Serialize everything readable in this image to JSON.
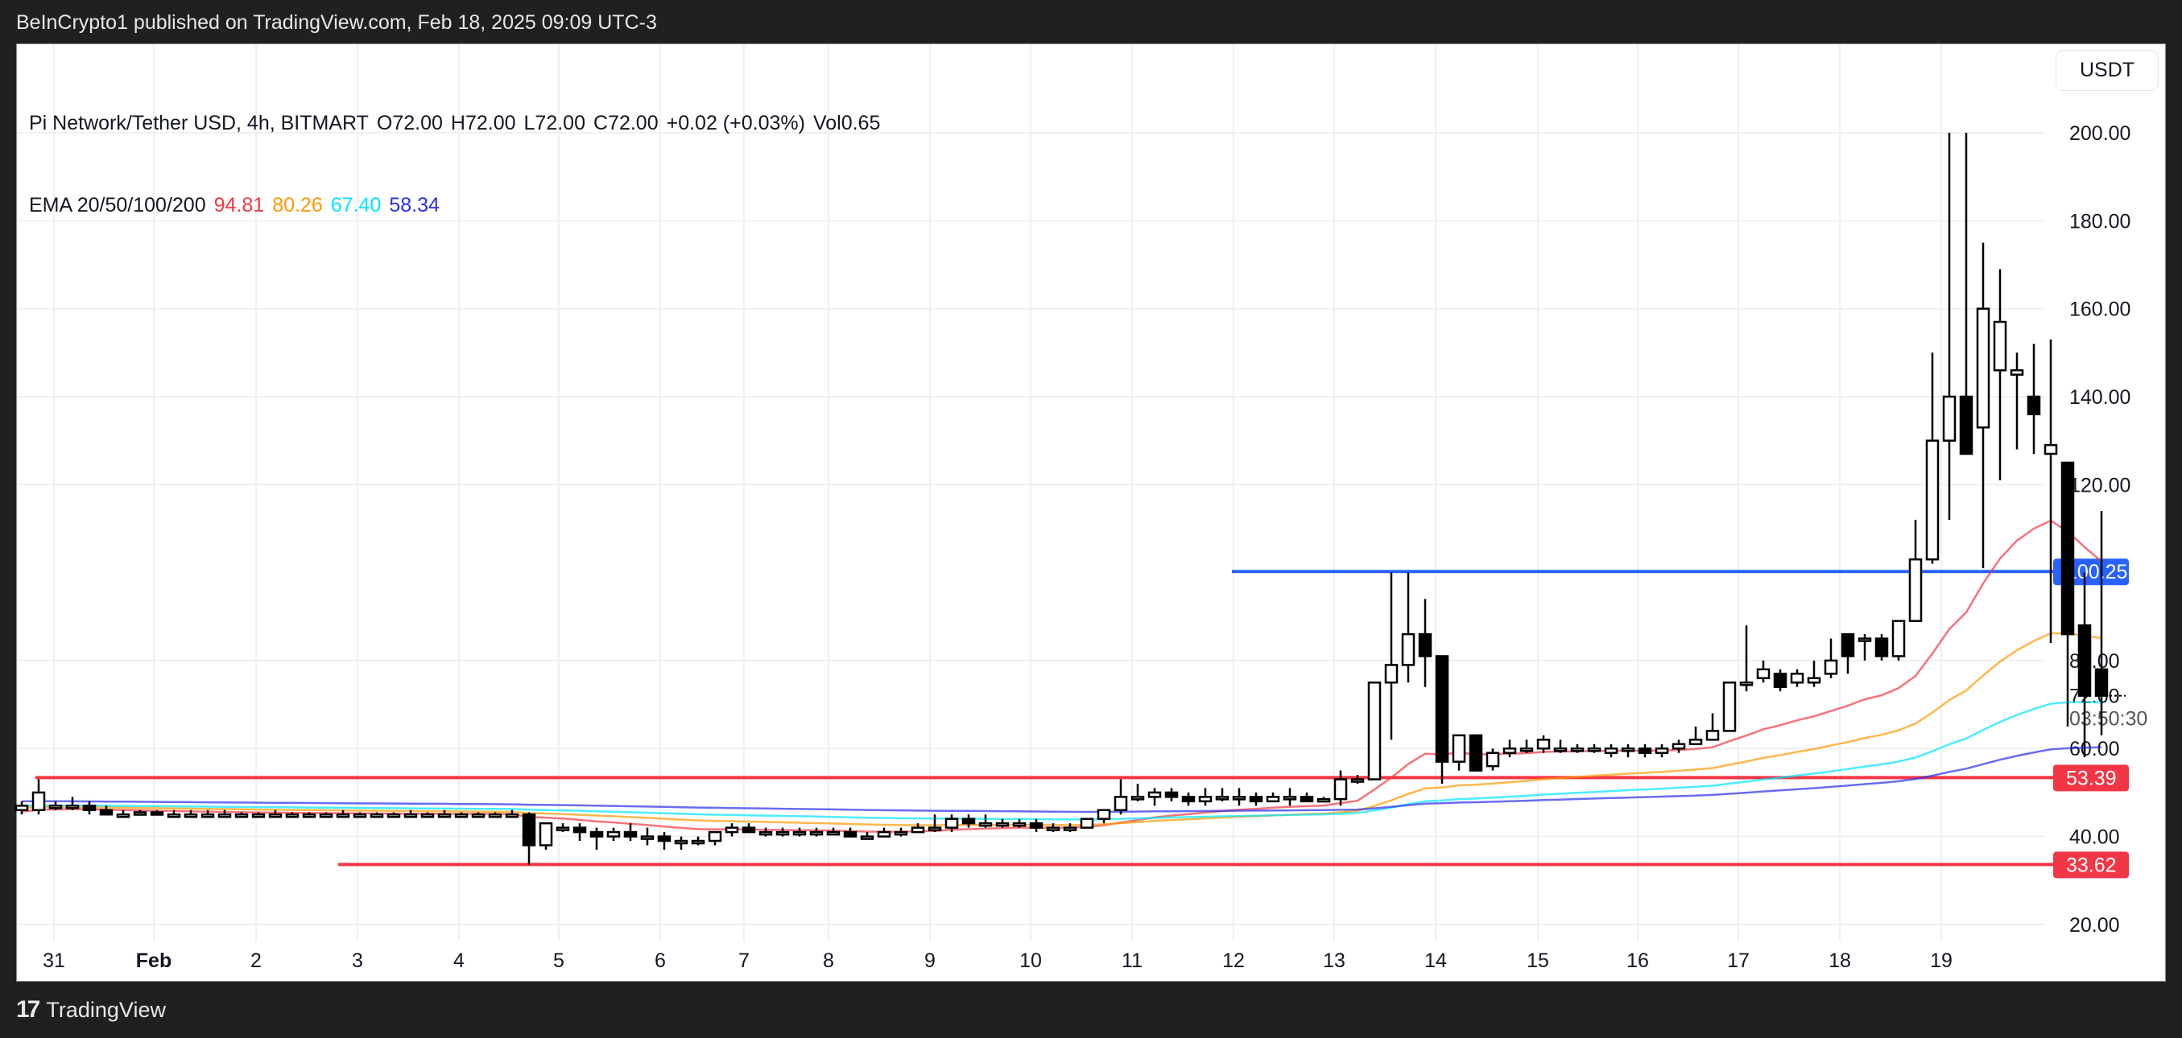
{
  "header": {
    "published": "BeInCrypto1 published on TradingView.com, Feb 18, 2025 09:09 UTC-3"
  },
  "legend": {
    "symbol": "Pi Network/Tether USD, 4h, BITMART",
    "open": "O72.00",
    "high": "H72.00",
    "low": "L72.00",
    "close": "C72.00",
    "change": "+0.02 (+0.03%)",
    "volume": "Vol0.65",
    "ema_label": "EMA 20/50/100/200",
    "ema_values": [
      {
        "value": "94.81",
        "color": "#f23645"
      },
      {
        "value": "80.26",
        "color": "#ff9800"
      },
      {
        "value": "67.40",
        "color": "#00e5ff"
      },
      {
        "value": "58.34",
        "color": "#2a2ee8"
      }
    ]
  },
  "currency_button": "USDT",
  "footer": {
    "brand": "TradingView",
    "logo": "17"
  },
  "price_axis": {
    "ticks": [
      "200.00",
      "180.00",
      "160.00",
      "140.00",
      "120.00",
      "80.00",
      "60.00",
      "40.00",
      "20.00"
    ],
    "current_price": "72.00",
    "countdown": "03:50:30",
    "levels": [
      {
        "label": "100.25",
        "color": "#2962ff"
      },
      {
        "label": "53.39",
        "color": "#f23645"
      },
      {
        "label": "33.62",
        "color": "#f23645"
      }
    ]
  },
  "time_axis": [
    "31",
    "Feb",
    "2",
    "3",
    "4",
    "5",
    "6",
    "7",
    "8",
    "9",
    "10",
    "11",
    "12",
    "13",
    "14",
    "15",
    "16",
    "17",
    "18",
    "19"
  ],
  "chart_data": {
    "type": "candlestick",
    "title": "Pi Network/Tether USD, 4h, BITMART",
    "xlabel": "",
    "ylabel": "USDT",
    "ylim": [
      14,
      206
    ],
    "grid": true,
    "y_ticks": [
      20,
      40,
      60,
      80,
      120,
      140,
      160,
      180,
      200
    ],
    "x_ticks": [
      "31",
      "Feb",
      "2",
      "3",
      "4",
      "5",
      "6",
      "7",
      "8",
      "9",
      "10",
      "11",
      "12",
      "13",
      "14",
      "15",
      "16",
      "17",
      "18",
      "19"
    ],
    "horizontal_levels": [
      {
        "price": 100.25,
        "color": "#2962ff",
        "label": "100.25"
      },
      {
        "price": 53.39,
        "color": "#f23645",
        "label": "53.39"
      },
      {
        "price": 33.62,
        "color": "#f23645",
        "label": "33.62"
      }
    ],
    "current_price": 72.0,
    "ema": [
      {
        "name": "EMA 20",
        "last": 94.81,
        "color": "#f23645"
      },
      {
        "name": "EMA 50",
        "last": 80.26,
        "color": "#ff9800"
      },
      {
        "name": "EMA 100",
        "last": 67.4,
        "color": "#00e5ff"
      },
      {
        "name": "EMA 200",
        "last": 58.34,
        "color": "#2a2ee8"
      }
    ],
    "candles": [
      [
        46,
        48,
        45,
        47
      ],
      [
        46,
        53,
        45,
        50
      ],
      [
        47,
        48,
        46,
        47
      ],
      [
        47,
        49,
        46,
        47
      ],
      [
        47,
        48,
        45,
        46
      ],
      [
        46,
        47,
        45,
        45
      ],
      [
        45,
        46,
        44.5,
        45
      ],
      [
        45,
        46,
        45,
        45.5
      ],
      [
        45.5,
        46,
        45,
        45
      ],
      [
        45,
        46,
        44.5,
        45
      ],
      [
        45,
        46,
        44.5,
        45
      ],
      [
        45,
        46,
        44.8,
        45
      ],
      [
        45,
        46,
        45,
        45
      ],
      [
        45,
        45.5,
        44.5,
        45
      ],
      [
        45,
        45.5,
        44.5,
        45
      ],
      [
        45,
        46,
        44.5,
        45
      ],
      [
        45,
        45.5,
        44.5,
        45
      ],
      [
        45,
        45.5,
        44.5,
        45
      ],
      [
        45,
        45.5,
        44.5,
        45
      ],
      [
        45,
        46,
        44.5,
        45
      ],
      [
        45,
        45.5,
        44.5,
        45
      ],
      [
        45,
        45.5,
        44.5,
        45
      ],
      [
        45,
        45.5,
        44.5,
        45
      ],
      [
        45,
        46,
        44.5,
        45
      ],
      [
        45,
        45.5,
        44.5,
        45
      ],
      [
        45,
        46,
        44.5,
        45
      ],
      [
        45,
        45.5,
        44.5,
        45
      ],
      [
        45,
        45.5,
        44.5,
        45
      ],
      [
        45,
        45.5,
        44.5,
        45
      ],
      [
        45,
        46,
        44.5,
        45
      ],
      [
        45,
        45.5,
        33.6,
        38
      ],
      [
        38,
        43,
        37,
        43
      ],
      [
        42,
        43,
        41,
        42
      ],
      [
        42,
        43,
        39,
        41
      ],
      [
        41,
        42,
        37,
        40
      ],
      [
        40,
        42,
        39,
        41
      ],
      [
        41,
        43,
        39,
        40
      ],
      [
        40,
        42,
        38,
        40
      ],
      [
        40,
        41,
        37,
        39
      ],
      [
        39,
        40,
        37,
        39
      ],
      [
        39,
        40,
        38,
        39
      ],
      [
        39,
        41,
        38,
        41
      ],
      [
        41,
        43,
        40,
        42
      ],
      [
        42,
        43,
        41,
        41
      ],
      [
        41,
        42,
        40,
        41
      ],
      [
        41,
        42,
        40,
        41
      ],
      [
        41,
        42,
        40,
        41
      ],
      [
        41,
        42,
        40,
        41
      ],
      [
        41,
        42,
        41,
        41
      ],
      [
        41,
        42,
        40,
        40
      ],
      [
        40,
        41,
        40,
        40
      ],
      [
        40,
        42,
        40,
        41
      ],
      [
        41,
        42,
        40,
        41
      ],
      [
        41,
        43,
        41,
        42
      ],
      [
        42,
        45,
        41,
        42
      ],
      [
        42,
        45,
        41,
        44
      ],
      [
        44,
        45,
        42,
        43
      ],
      [
        43,
        45,
        42,
        43
      ],
      [
        43,
        44,
        42,
        43
      ],
      [
        43,
        44,
        42,
        43
      ],
      [
        43,
        44,
        41,
        42
      ],
      [
        42,
        43,
        41,
        42
      ],
      [
        42,
        43,
        41,
        42
      ],
      [
        42,
        44,
        42,
        44
      ],
      [
        44,
        46,
        43,
        46
      ],
      [
        46,
        53,
        45,
        49
      ],
      [
        49,
        52,
        48,
        49
      ],
      [
        49,
        51,
        47,
        50
      ],
      [
        50,
        51,
        48,
        49
      ],
      [
        49,
        50,
        47,
        48
      ],
      [
        48,
        51,
        47,
        49
      ],
      [
        49,
        51,
        48,
        49
      ],
      [
        49,
        51,
        47,
        49
      ],
      [
        49,
        50,
        47,
        48
      ],
      [
        48,
        50,
        48,
        49
      ],
      [
        49,
        51,
        47,
        49
      ],
      [
        49,
        50,
        48,
        48
      ],
      [
        48,
        49,
        48,
        48.5
      ],
      [
        48.5,
        55,
        47,
        53
      ],
      [
        53,
        54,
        52,
        53
      ],
      [
        53,
        70,
        53,
        75
      ],
      [
        75,
        100,
        62,
        79
      ],
      [
        79,
        100,
        75,
        86
      ],
      [
        86,
        94,
        74,
        81
      ],
      [
        81,
        80,
        52,
        57
      ],
      [
        57,
        63,
        55,
        63
      ],
      [
        63,
        63,
        55,
        55
      ],
      [
        56,
        60,
        55,
        59
      ],
      [
        59,
        62,
        58,
        60
      ],
      [
        60,
        62,
        59,
        60
      ],
      [
        60,
        63,
        59,
        62
      ],
      [
        60,
        62,
        59,
        60
      ],
      [
        60,
        61,
        59,
        60
      ],
      [
        60,
        61,
        59,
        60
      ],
      [
        59,
        61,
        58,
        60
      ],
      [
        60,
        61,
        58,
        60
      ],
      [
        60,
        61,
        58,
        59
      ],
      [
        59,
        61,
        58,
        60
      ],
      [
        60,
        62,
        59,
        61
      ],
      [
        61,
        65,
        61,
        62
      ],
      [
        62,
        68,
        62,
        64
      ],
      [
        64,
        75,
        64,
        75
      ],
      [
        75,
        88,
        73,
        75
      ],
      [
        76,
        80,
        75,
        78
      ],
      [
        77,
        78,
        73,
        74
      ],
      [
        75,
        78,
        74,
        77
      ],
      [
        75,
        80,
        74,
        76
      ],
      [
        77,
        85,
        76,
        80
      ],
      [
        86,
        86,
        77,
        81
      ],
      [
        85,
        86,
        80,
        85
      ],
      [
        85,
        86,
        80,
        81
      ],
      [
        81,
        87,
        80,
        89
      ],
      [
        89,
        112,
        89,
        103
      ],
      [
        103,
        150,
        102,
        130
      ],
      [
        130,
        200,
        112,
        140
      ],
      [
        140,
        200,
        129,
        127
      ],
      [
        133,
        175,
        101,
        160
      ],
      [
        146,
        169,
        121,
        157
      ],
      [
        145,
        150,
        128,
        146
      ],
      [
        140,
        152,
        127,
        136
      ],
      [
        127,
        153,
        84,
        129
      ],
      [
        125,
        121,
        65,
        86
      ],
      [
        88,
        100,
        58,
        72
      ],
      [
        78,
        114,
        63,
        72
      ]
    ]
  }
}
